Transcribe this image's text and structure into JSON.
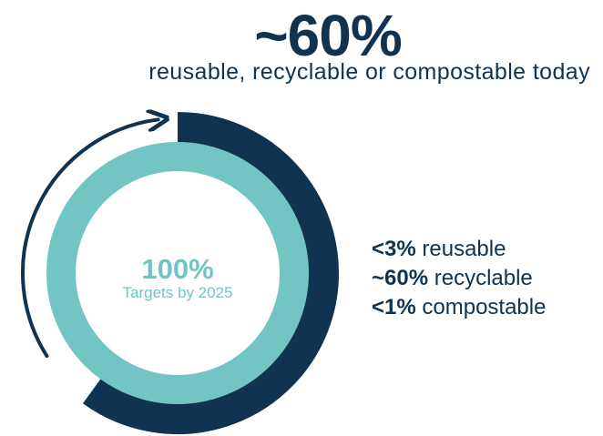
{
  "headline": {
    "value": "~60%",
    "subtitle": "reusable, recyclable or compostable today"
  },
  "target": {
    "value": "100%",
    "caption": "Targets by 2025"
  },
  "breakdown": [
    {
      "value": "<3%",
      "label": "reusable"
    },
    {
      "value": "~60%",
      "label": "recyclable"
    },
    {
      "value": "<1%",
      "label": "compostable"
    }
  ],
  "colors": {
    "navy": "#0f3350",
    "teal": "#73c5c4"
  },
  "chart_data": {
    "type": "pie",
    "style": "donut",
    "title": "~60%",
    "subtitle": "reusable, recyclable or compostable today",
    "center_label": "100%",
    "center_caption": "Targets by 2025",
    "series": [
      {
        "name": "~60%",
        "values": [
          60
        ]
      },
      {
        "name": "100%",
        "values": [
          100
        ]
      }
    ],
    "components": [
      {
        "label": "reusable",
        "value": "<3%"
      },
      {
        "label": "recyclable",
        "value": "~60%"
      },
      {
        "label": "compostable",
        "value": "<1%"
      }
    ],
    "arrow": "clockwise"
  }
}
